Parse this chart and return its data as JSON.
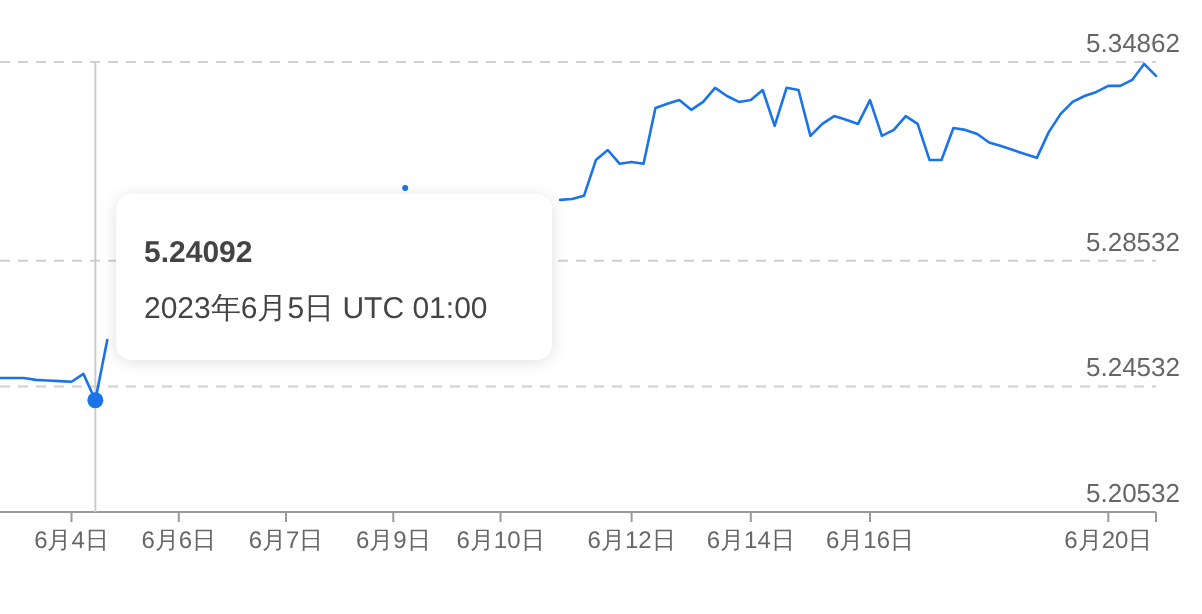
{
  "chart_data": {
    "type": "line",
    "categories": [
      null,
      null,
      null,
      null,
      null,
      null,
      "6月4日",
      null,
      null,
      null,
      null,
      null,
      null,
      null,
      null,
      "6月6日",
      null,
      null,
      null,
      null,
      null,
      null,
      null,
      null,
      "6月7日",
      null,
      null,
      null,
      null,
      null,
      null,
      null,
      null,
      "6月9日",
      null,
      null,
      null,
      null,
      null,
      null,
      null,
      null,
      "6月10日",
      null,
      null,
      null,
      null,
      null,
      null,
      null,
      null,
      null,
      null,
      "6月12日",
      null,
      null,
      null,
      null,
      null,
      null,
      null,
      null,
      null,
      "6月14日",
      null,
      null,
      null,
      null,
      null,
      null,
      null,
      null,
      null,
      "6月16日",
      null,
      null,
      null,
      null,
      null,
      null,
      null,
      null,
      null,
      null,
      null,
      null,
      null,
      null,
      null,
      null,
      null,
      null,
      null,
      "6月20日",
      null,
      null,
      null,
      null
    ],
    "series": [
      {
        "color": "#1a73e8",
        "values": [
          5.248,
          5.248,
          5.248,
          5.2474,
          5.2472,
          5.247,
          5.2468,
          5.2493,
          5.2409,
          5.2601,
          null,
          null,
          null,
          null,
          null,
          null,
          null,
          null,
          null,
          null,
          null,
          null,
          null,
          null,
          null,
          null,
          null,
          null,
          null,
          null,
          null,
          null,
          null,
          null,
          5.3085,
          null,
          null,
          null,
          null,
          null,
          null,
          null,
          null,
          null,
          null,
          null,
          null,
          5.3047,
          5.305,
          5.306,
          5.3174,
          5.3206,
          5.3162,
          5.3168,
          5.3162,
          5.334,
          5.3353,
          5.3365,
          5.3334,
          5.3359,
          5.3404,
          5.3378,
          5.3359,
          5.3365,
          5.3397,
          5.3283,
          5.3404,
          5.3397,
          5.3251,
          5.3289,
          5.3314,
          5.3302,
          5.3289,
          5.3365,
          5.3251,
          5.327,
          5.3314,
          5.3289,
          5.3174,
          5.3174,
          5.3276,
          5.327,
          5.3257,
          5.323,
          5.3219,
          5.3206,
          5.3193,
          5.3181,
          5.3263,
          5.3321,
          5.3359,
          5.3378,
          5.3391,
          5.341,
          5.341,
          5.3429,
          5.348,
          5.3442
        ]
      },
      {
        "type": "scatter",
        "color": "#1a73e8",
        "values": [
          null,
          null,
          null,
          null,
          null,
          null,
          null,
          null,
          5.2409,
          null,
          null,
          null,
          null,
          null,
          null,
          null,
          null,
          null,
          null,
          null,
          null,
          null,
          null,
          null,
          null,
          null,
          null,
          null,
          null,
          null,
          null,
          null,
          null,
          null,
          null,
          null,
          null,
          null,
          null,
          null,
          null,
          null,
          null,
          null,
          null,
          null,
          null,
          null,
          null,
          null,
          null,
          null,
          null,
          null,
          null,
          null,
          null,
          null,
          null,
          null,
          null,
          null,
          null,
          null,
          null,
          null,
          null,
          null,
          null,
          null,
          null,
          null,
          null,
          null,
          null,
          null,
          null,
          null,
          null,
          null,
          null,
          null,
          null,
          null,
          null,
          null,
          null,
          null,
          null,
          null,
          null,
          null,
          null,
          null,
          null,
          null,
          null,
          null
        ]
      }
    ],
    "ylim": [
      5.20532,
      5.34862
    ],
    "yticks": [
      5.20532,
      5.24532,
      5.28532,
      5.34862
    ],
    "grid": "y",
    "annotations": [
      "5.24092",
      "2023年6月5日 UTC 01:00"
    ]
  }
}
